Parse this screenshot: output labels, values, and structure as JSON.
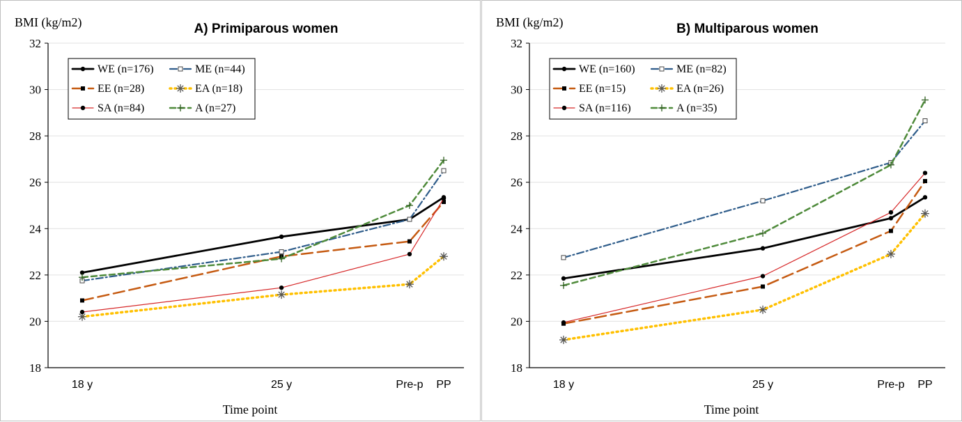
{
  "chart_data": [
    {
      "type": "line",
      "title": "A) Primiparous women",
      "ylabel": "BMI (kg/m2)",
      "xlabel": "Time point",
      "categories": [
        "18 y",
        "25 y",
        "Pre-p",
        "PP"
      ],
      "x": [
        18,
        25,
        29.5,
        30.7
      ],
      "ylim": [
        18,
        32
      ],
      "yticks": [
        18,
        20,
        22,
        24,
        26,
        28,
        30,
        32
      ],
      "grid": true,
      "legend_position": "top-left",
      "series": [
        {
          "name": "WE (n=176)",
          "values": [
            22.1,
            23.65,
            24.4,
            25.35
          ],
          "color": "#000000",
          "dash": "",
          "width": 2.8,
          "marker": "dot"
        },
        {
          "name": "ME (n=44)",
          "values": [
            21.75,
            23.0,
            24.4,
            26.5
          ],
          "color": "#2e5c8a",
          "dash": "10,4,2,4",
          "width": 2.2,
          "marker": "square-open"
        },
        {
          "name": "EE (n=28)",
          "values": [
            20.9,
            22.8,
            23.45,
            25.15
          ],
          "color": "#c55a11",
          "dash": "16,7",
          "width": 2.5,
          "marker": "square"
        },
        {
          "name": "EA (n=18)",
          "values": [
            20.2,
            21.15,
            21.6,
            22.8
          ],
          "color": "#ffc000",
          "dash": "2,5",
          "width": 3.5,
          "marker": "asterisk"
        },
        {
          "name": "SA (n=84)",
          "values": [
            20.4,
            21.45,
            22.9,
            25.3
          ],
          "color": "#d62728",
          "dash": "",
          "width": 1.2,
          "marker": "dot"
        },
        {
          "name": "A (n=27)",
          "values": [
            21.9,
            22.7,
            25.0,
            26.95
          ],
          "color": "#4e8a3a",
          "dash": "8,5",
          "width": 2.5,
          "marker": "plus"
        }
      ]
    },
    {
      "type": "line",
      "title": "B) Multiparous women",
      "ylabel": "BMI (kg/m2)",
      "xlabel": "Time point",
      "categories": [
        "18 y",
        "25 y",
        "Pre-p",
        "PP"
      ],
      "x": [
        18,
        25,
        29.5,
        30.7
      ],
      "ylim": [
        18,
        32
      ],
      "yticks": [
        18,
        20,
        22,
        24,
        26,
        28,
        30,
        32
      ],
      "grid": true,
      "legend_position": "top-left",
      "series": [
        {
          "name": "WE (n=160)",
          "values": [
            21.85,
            23.15,
            24.45,
            25.35
          ],
          "color": "#000000",
          "dash": "",
          "width": 2.8,
          "marker": "dot"
        },
        {
          "name": "ME (n=82)",
          "values": [
            22.75,
            25.2,
            26.85,
            28.65
          ],
          "color": "#2e5c8a",
          "dash": "10,4,2,4",
          "width": 2.2,
          "marker": "square-open"
        },
        {
          "name": "EE (n=15)",
          "values": [
            19.9,
            21.5,
            23.9,
            26.05
          ],
          "color": "#c55a11",
          "dash": "16,7",
          "width": 2.5,
          "marker": "square"
        },
        {
          "name": "EA (n=26)",
          "values": [
            19.2,
            20.5,
            22.9,
            24.65
          ],
          "color": "#ffc000",
          "dash": "2,5",
          "width": 3.5,
          "marker": "asterisk"
        },
        {
          "name": "SA (n=116)",
          "values": [
            19.95,
            21.95,
            24.7,
            26.4
          ],
          "color": "#d62728",
          "dash": "",
          "width": 1.2,
          "marker": "dot"
        },
        {
          "name": "A (n=35)",
          "values": [
            21.55,
            23.8,
            26.75,
            29.55
          ],
          "color": "#4e8a3a",
          "dash": "8,5",
          "width": 2.5,
          "marker": "plus"
        }
      ]
    }
  ]
}
